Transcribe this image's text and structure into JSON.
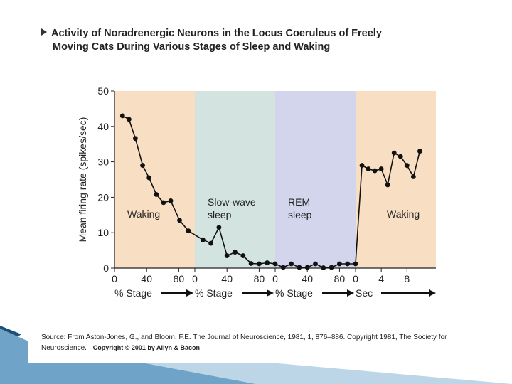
{
  "title": {
    "line1": "Activity of Noradrenergic Neurons in the Locus Coeruleus of Freely",
    "line2": "Moving Cats During Various Stages of Sleep and Waking"
  },
  "source": {
    "text": "Source: From Aston-Jones, G., and Bloom, F.E. The Journal of Neuroscience, 1981, 1, 876–886. Copyright 1981, The Society for Neuroscience.",
    "copyright": "Copyright © 2001 by Allyn & Bacon"
  },
  "colors": {
    "waking": "#f8dfc3",
    "slow_wave": "#d3e3e0",
    "rem": "#d3d5ec",
    "line": "#111111"
  },
  "chart_data": {
    "type": "line",
    "ylabel": "Mean firing rate (spikes/sec)",
    "ylim": [
      0,
      50
    ],
    "yticks": [
      0,
      10,
      20,
      30,
      40,
      50
    ],
    "grid": false,
    "segments": [
      {
        "name": "Waking",
        "region_label": [
          "Waking"
        ],
        "color_key": "waking",
        "axis_label": "% Stage",
        "xlim": [
          0,
          100
        ],
        "ticks": [
          0,
          40,
          80
        ],
        "x": [
          10,
          18,
          26,
          35,
          43,
          52,
          61,
          70,
          81,
          92
        ],
        "y": [
          43,
          42,
          36.6,
          29,
          25.5,
          20.8,
          18.5,
          19,
          13.5,
          10.5
        ]
      },
      {
        "name": "Slow-wave sleep",
        "region_label": [
          "Slow-wave",
          "sleep"
        ],
        "color_key": "slow_wave",
        "axis_label": "% Stage",
        "xlim": [
          0,
          100
        ],
        "ticks": [
          0,
          40,
          80
        ],
        "x": [
          10,
          20,
          30,
          40,
          50,
          60,
          70,
          80,
          90,
          100
        ],
        "y": [
          8,
          7,
          11.5,
          3.5,
          4.5,
          3.5,
          1.3,
          1.2,
          1.5,
          1.2
        ]
      },
      {
        "name": "REM sleep",
        "region_label": [
          "REM",
          "sleep"
        ],
        "color_key": "rem",
        "axis_label": "% Stage",
        "xlim": [
          0,
          100
        ],
        "ticks": [
          0,
          40,
          80
        ],
        "x": [
          10,
          20,
          30,
          40,
          50,
          60,
          70,
          80,
          90,
          100
        ],
        "y": [
          0.2,
          1.2,
          0.2,
          0.2,
          1.2,
          0.1,
          0.2,
          1.2,
          1.2,
          1.2
        ]
      },
      {
        "name": "Waking",
        "region_label": [
          "Waking"
        ],
        "color_key": "waking",
        "axis_label": "Sec",
        "xlim": [
          0,
          12.5
        ],
        "ticks": [
          0,
          4,
          8
        ],
        "x": [
          1,
          2,
          3,
          4,
          5,
          6,
          7,
          8,
          9,
          10
        ],
        "y": [
          29,
          28,
          27.5,
          28,
          23.5,
          32.5,
          31.5,
          29,
          25.8,
          33
        ]
      }
    ]
  }
}
